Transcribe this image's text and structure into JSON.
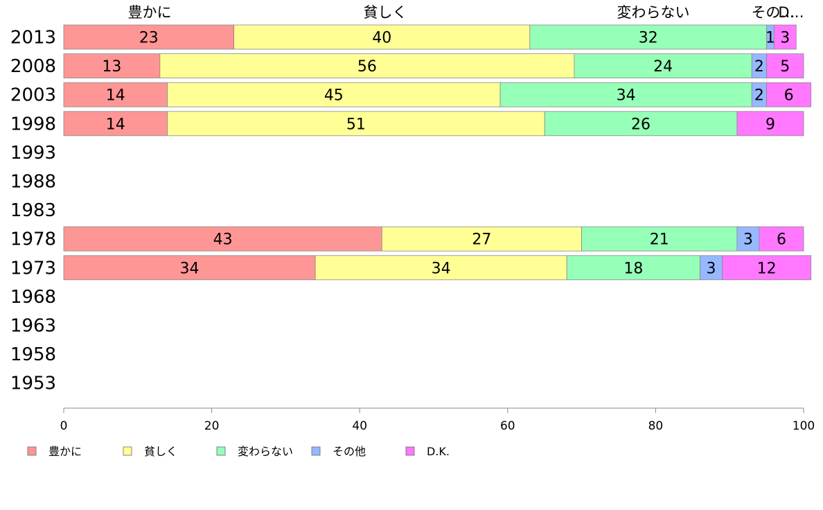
{
  "colors": {
    "豊かに": "#ff9696",
    "貧しく": "#ffff96",
    "変わらない": "#96ffb8",
    "その他": "#96b8ff",
    "D.K.": "#ff78ff"
  },
  "chart_data": {
    "type": "bar",
    "orientation": "horizontal",
    "stacked": true,
    "categories": [
      "2013",
      "2008",
      "2003",
      "1998",
      "1993",
      "1988",
      "1983",
      "1978",
      "1973",
      "1968",
      "1963",
      "1958",
      "1953"
    ],
    "series": [
      {
        "name": "豊かに",
        "values": [
          23,
          13,
          14,
          14,
          null,
          null,
          null,
          43,
          34,
          null,
          null,
          null,
          null
        ]
      },
      {
        "name": "貧しく",
        "values": [
          40,
          56,
          45,
          51,
          null,
          null,
          null,
          27,
          34,
          null,
          null,
          null,
          null
        ]
      },
      {
        "name": "変わらない",
        "values": [
          32,
          24,
          34,
          26,
          null,
          null,
          null,
          21,
          18,
          null,
          null,
          null,
          null
        ]
      },
      {
        "name": "その他",
        "values": [
          1,
          2,
          2,
          0,
          null,
          null,
          null,
          3,
          3,
          null,
          null,
          null,
          null
        ]
      },
      {
        "name": "D.K.",
        "values": [
          3,
          5,
          6,
          9,
          null,
          null,
          null,
          6,
          12,
          null,
          null,
          null,
          null
        ]
      }
    ],
    "top_labels": [
      "豊かに",
      "貧しく",
      "変わらない",
      "その…",
      "D…"
    ],
    "xlim": [
      0,
      100
    ],
    "xticks": [
      "0",
      "20",
      "40",
      "60",
      "80",
      "100"
    ],
    "legend": [
      "豊かに",
      "貧しく",
      "変わらない",
      "その他",
      "D.K."
    ],
    "legend_position": "bottom-left",
    "grid": false
  }
}
